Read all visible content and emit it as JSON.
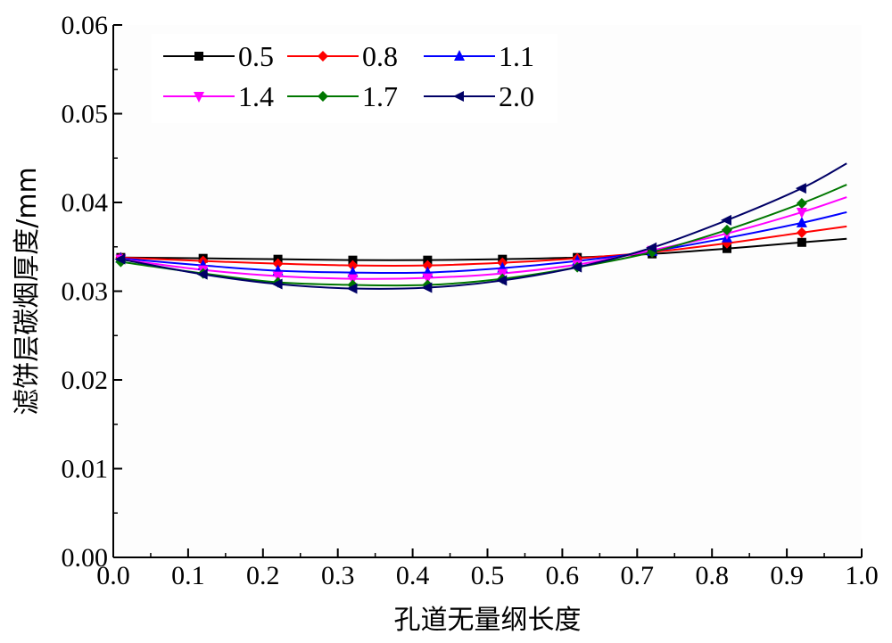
{
  "chart_data": {
    "type": "line",
    "title": "",
    "xlabel": "孔道无量纲长度",
    "ylabel": "滤饼层碳烟厚度/mm",
    "xlim": [
      0.0,
      1.0
    ],
    "ylim": [
      0.0,
      0.06
    ],
    "x_ticks": [
      "0.0",
      "0.1",
      "0.2",
      "0.3",
      "0.4",
      "0.5",
      "0.6",
      "0.7",
      "0.8",
      "0.9",
      "1.0"
    ],
    "y_ticks": [
      "0.00",
      "0.01",
      "0.02",
      "0.03",
      "0.04",
      "0.05",
      "0.06"
    ],
    "grid": false,
    "legend_position": "top-left",
    "x": [
      0.01,
      0.12,
      0.22,
      0.32,
      0.42,
      0.52,
      0.62,
      0.72,
      0.82,
      0.92,
      0.98
    ],
    "series": [
      {
        "name": "0.5",
        "color": "#000000",
        "marker": "square",
        "values": [
          0.0338,
          0.0337,
          0.0336,
          0.0335,
          0.0335,
          0.0336,
          0.0338,
          0.0342,
          0.0348,
          0.0355,
          0.0359
        ]
      },
      {
        "name": "0.8",
        "color": "#ff0000",
        "marker": "diamond",
        "values": [
          0.0338,
          0.0334,
          0.0331,
          0.0329,
          0.0329,
          0.0332,
          0.0337,
          0.0344,
          0.0354,
          0.0366,
          0.0373
        ]
      },
      {
        "name": "1.1",
        "color": "#0000ff",
        "marker": "triangle-up",
        "values": [
          0.0337,
          0.0329,
          0.0323,
          0.0321,
          0.0321,
          0.0326,
          0.0334,
          0.0345,
          0.036,
          0.0377,
          0.0389
        ]
      },
      {
        "name": "1.4",
        "color": "#ff00ff",
        "marker": "triangle-down",
        "values": [
          0.0336,
          0.0324,
          0.0317,
          0.0314,
          0.0315,
          0.032,
          0.033,
          0.0346,
          0.0365,
          0.0389,
          0.0406
        ]
      },
      {
        "name": "1.7",
        "color": "#007700",
        "marker": "diamond",
        "values": [
          0.0333,
          0.032,
          0.031,
          0.0307,
          0.0307,
          0.0314,
          0.0327,
          0.0344,
          0.0369,
          0.0399,
          0.042
        ]
      },
      {
        "name": "2.0",
        "color": "#000066",
        "marker": "triangle-left",
        "values": [
          0.0336,
          0.0319,
          0.0308,
          0.0303,
          0.0304,
          0.0312,
          0.0327,
          0.0349,
          0.038,
          0.0416,
          0.0444
        ]
      }
    ]
  }
}
